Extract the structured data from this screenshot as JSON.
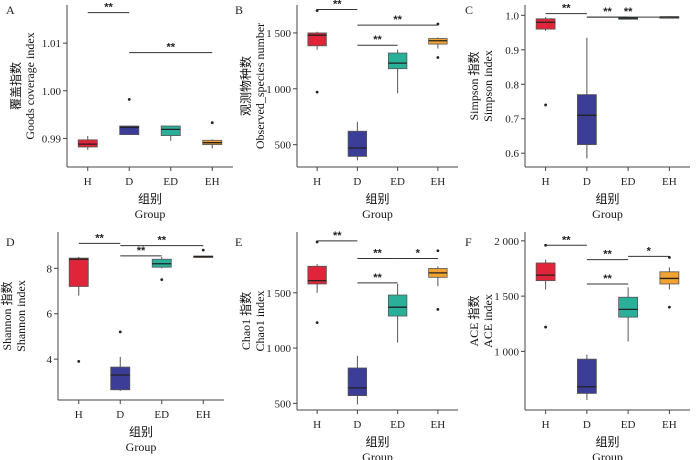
{
  "colors": {
    "H": "#e0243a",
    "D": "#3b3d96",
    "ED": "#2ab09a",
    "EH": "#f2a230"
  },
  "chart_data": [
    {
      "panel": "A",
      "type": "boxplot",
      "ylabel": [
        "覆盖指数",
        "Goods coverage index"
      ],
      "xlabel": [
        "组别",
        "Group"
      ],
      "categories": [
        "H",
        "D",
        "ED",
        "EH"
      ],
      "ylim": [
        0.984,
        1.018
      ],
      "yticks": [
        0.99,
        1.0,
        1.01
      ],
      "yticklabels": [
        "0.99",
        "1.00",
        "1.01"
      ],
      "boxes": [
        {
          "group": "H",
          "whislo": 0.9876,
          "q1": 0.9882,
          "med": 0.9888,
          "q3": 0.9897,
          "whishi": 0.9905,
          "fliers": []
        },
        {
          "group": "D",
          "whislo": 0.9907,
          "q1": 0.9908,
          "med": 0.9923,
          "q3": 0.9926,
          "whishi": 0.9926,
          "fliers": [
            0.9982
          ]
        },
        {
          "group": "ED",
          "whislo": 0.9895,
          "q1": 0.9906,
          "med": 0.9919,
          "q3": 0.9926,
          "whishi": 0.9926,
          "fliers": []
        },
        {
          "group": "EH",
          "whislo": 0.9879,
          "q1": 0.9887,
          "med": 0.9891,
          "q3": 0.9896,
          "whishi": 0.9898,
          "fliers": [
            0.9933
          ]
        }
      ],
      "brackets": [
        {
          "from": "H",
          "to": "D",
          "y": 1.0164,
          "label": "**"
        },
        {
          "from": "D",
          "to": "EH",
          "y": 1.008,
          "label": "**"
        }
      ]
    },
    {
      "panel": "B",
      "type": "boxplot",
      "ylabel": [
        "观测物种数",
        "Observed_species number"
      ],
      "xlabel": [
        "组别",
        "Group"
      ],
      "categories": [
        "H",
        "D",
        "ED",
        "EH"
      ],
      "ylim": [
        300,
        1750
      ],
      "yticks": [
        500,
        1000,
        1500
      ],
      "yticklabels": [
        "500",
        "1 000",
        "1 500"
      ],
      "boxes": [
        {
          "group": "H",
          "whislo": 1350,
          "q1": 1385,
          "med": 1480,
          "q3": 1500,
          "whishi": 1510,
          "fliers": [
            970,
            1700
          ]
        },
        {
          "group": "D",
          "whislo": 360,
          "q1": 395,
          "med": 470,
          "q3": 620,
          "whishi": 705,
          "fliers": []
        },
        {
          "group": "ED",
          "whislo": 960,
          "q1": 1180,
          "med": 1230,
          "q3": 1320,
          "whishi": 1350,
          "fliers": []
        },
        {
          "group": "EH",
          "whislo": 1360,
          "q1": 1400,
          "med": 1430,
          "q3": 1450,
          "whishi": 1460,
          "fliers": [
            1280,
            1580
          ]
        }
      ],
      "brackets": [
        {
          "from": "H",
          "to": "D",
          "y": 1710,
          "label": "**"
        },
        {
          "from": "D",
          "to": "EH",
          "y": 1570,
          "label": "**"
        },
        {
          "from": "D",
          "to": "ED",
          "y": 1390,
          "label": "**"
        }
      ]
    },
    {
      "panel": "C",
      "type": "boxplot",
      "ylabel": [
        "Simpson 指数",
        "Simpson index"
      ],
      "xlabel": [
        "组别",
        "Group"
      ],
      "categories": [
        "H",
        "D",
        "ED",
        "EH"
      ],
      "ylim": [
        0.56,
        1.03
      ],
      "yticks": [
        0.6,
        0.7,
        0.8,
        0.9,
        1.0
      ],
      "yticklabels": [
        "0.6",
        "0.7",
        "0.8",
        "0.9",
        "1.0"
      ],
      "boxes": [
        {
          "group": "H",
          "whislo": 0.955,
          "q1": 0.96,
          "med": 0.98,
          "q3": 0.99,
          "whishi": 0.995,
          "fliers": [
            0.74
          ]
        },
        {
          "group": "D",
          "whislo": 0.585,
          "q1": 0.625,
          "med": 0.71,
          "q3": 0.77,
          "whishi": 0.935,
          "fliers": []
        },
        {
          "group": "ED",
          "whislo": 0.99,
          "q1": 0.991,
          "med": 0.992,
          "q3": 0.993,
          "whishi": 0.994,
          "fliers": []
        },
        {
          "group": "EH",
          "whislo": 0.993,
          "q1": 0.994,
          "med": 0.995,
          "q3": 0.996,
          "whishi": 0.997,
          "fliers": []
        }
      ],
      "brackets": [
        {
          "from": "H",
          "to": "D",
          "y": 1.005,
          "label": "**"
        },
        {
          "from": "D",
          "to": "ED",
          "y": 0.995,
          "label": "**"
        },
        {
          "from": "D",
          "to": "EH",
          "y": 0.995,
          "label": "**"
        }
      ]
    },
    {
      "panel": "D",
      "type": "boxplot",
      "ylabel": [
        "Shannon 指数",
        "Shannon index"
      ],
      "xlabel": [
        "组别",
        "Group"
      ],
      "categories": [
        "H",
        "D",
        "ED",
        "EH"
      ],
      "ylim": [
        2.2,
        9.6
      ],
      "yticks": [
        4,
        6,
        8
      ],
      "yticklabels": [
        "4",
        "6",
        "8"
      ],
      "boxes": [
        {
          "group": "H",
          "whislo": 6.8,
          "q1": 7.2,
          "med": 8.4,
          "q3": 8.45,
          "whishi": 8.5,
          "fliers": [
            3.9
          ]
        },
        {
          "group": "D",
          "whislo": 2.6,
          "q1": 2.65,
          "med": 3.3,
          "q3": 3.65,
          "whishi": 4.1,
          "fliers": [
            5.2
          ]
        },
        {
          "group": "ED",
          "whislo": 8.0,
          "q1": 8.05,
          "med": 8.2,
          "q3": 8.4,
          "whishi": 8.5,
          "fliers": [
            7.5
          ]
        },
        {
          "group": "EH",
          "whislo": 8.48,
          "q1": 8.5,
          "med": 8.52,
          "q3": 8.54,
          "whishi": 8.56,
          "fliers": [
            8.8
          ]
        }
      ],
      "brackets": [
        {
          "from": "H",
          "to": "D",
          "y": 9.1,
          "label": "**"
        },
        {
          "from": "D",
          "to": "EH",
          "y": 9.0,
          "label": "**"
        },
        {
          "from": "D",
          "to": "ED",
          "y": 8.55,
          "label": "**"
        }
      ]
    },
    {
      "panel": "E",
      "type": "boxplot",
      "ylabel": [
        "Chao1 指数",
        "Chao1 index"
      ],
      "xlabel": [
        "组别",
        "Group"
      ],
      "categories": [
        "H",
        "D",
        "ED",
        "EH"
      ],
      "ylim": [
        440,
        2050
      ],
      "yticks": [
        500,
        1000,
        1500
      ],
      "yticklabels": [
        "500",
        "1 000",
        "1 500"
      ],
      "boxes": [
        {
          "group": "H",
          "whislo": 1500,
          "q1": 1580,
          "med": 1610,
          "q3": 1740,
          "whishi": 1760,
          "fliers": [
            1230,
            1960
          ]
        },
        {
          "group": "D",
          "whislo": 490,
          "q1": 570,
          "med": 640,
          "q3": 820,
          "whishi": 930,
          "fliers": []
        },
        {
          "group": "ED",
          "whislo": 1050,
          "q1": 1290,
          "med": 1370,
          "q3": 1480,
          "whishi": 1580,
          "fliers": []
        },
        {
          "group": "EH",
          "whislo": 1560,
          "q1": 1640,
          "med": 1680,
          "q3": 1720,
          "whishi": 1740,
          "fliers": [
            1350,
            1880
          ]
        }
      ],
      "brackets": [
        {
          "from": "H",
          "to": "D",
          "y": 1970,
          "label": "**"
        },
        {
          "from": "D",
          "to": "ED",
          "y": 1810,
          "label": "**"
        },
        {
          "from": "ED",
          "to": "EH",
          "y": 1810,
          "label": "*"
        },
        {
          "from": "D",
          "to": "ED",
          "y": 1590,
          "label": "**"
        }
      ]
    },
    {
      "panel": "F",
      "type": "boxplot",
      "ylabel": [
        "ACE 指数",
        "ACE index"
      ],
      "xlabel": [
        "组别",
        "Group"
      ],
      "categories": [
        "H",
        "D",
        "ED",
        "EH"
      ],
      "ylim": [
        470,
        2080
      ],
      "yticks": [
        1000,
        1500,
        2000
      ],
      "yticklabels": [
        "1 000",
        "1 500",
        "2 000"
      ],
      "boxes": [
        {
          "group": "H",
          "whislo": 1560,
          "q1": 1640,
          "med": 1690,
          "q3": 1800,
          "whishi": 1830,
          "fliers": [
            1220,
            1960
          ]
        },
        {
          "group": "D",
          "whislo": 560,
          "q1": 620,
          "med": 680,
          "q3": 930,
          "whishi": 970,
          "fliers": []
        },
        {
          "group": "ED",
          "whislo": 1090,
          "q1": 1310,
          "med": 1380,
          "q3": 1490,
          "whishi": 1580,
          "fliers": []
        },
        {
          "group": "EH",
          "whislo": 1560,
          "q1": 1610,
          "med": 1660,
          "q3": 1720,
          "whishi": 1760,
          "fliers": [
            1400,
            1850
          ]
        }
      ],
      "brackets": [
        {
          "from": "H",
          "to": "D",
          "y": 1960,
          "label": "**"
        },
        {
          "from": "D",
          "to": "ED",
          "y": 1830,
          "label": "**"
        },
        {
          "from": "ED",
          "to": "EH",
          "y": 1860,
          "label": "*"
        },
        {
          "from": "D",
          "to": "ED",
          "y": 1610,
          "label": "**"
        }
      ]
    }
  ]
}
